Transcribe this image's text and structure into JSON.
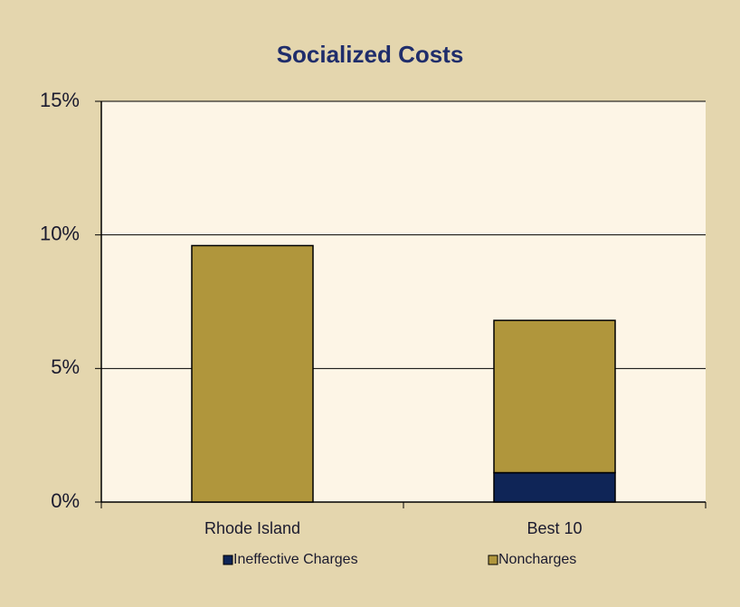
{
  "chart_data": {
    "type": "stacked_bar",
    "title": "Socialized Costs",
    "categories": [
      "Rhode Island",
      "Best 10"
    ],
    "series": [
      {
        "name": "Ineffective Charges",
        "color": "#0f2557",
        "values": [
          0,
          1.1
        ]
      },
      {
        "name": "Noncharges",
        "color": "#b0963c",
        "values": [
          9.6,
          5.7
        ]
      }
    ],
    "ylim": [
      0,
      15
    ],
    "yticks": [
      {
        "value": 0,
        "label": "0%"
      },
      {
        "value": 5,
        "label": "5%"
      },
      {
        "value": 10,
        "label": "10%"
      },
      {
        "value": 15,
        "label": "15%"
      }
    ],
    "grid": true,
    "legend": "bottom"
  }
}
